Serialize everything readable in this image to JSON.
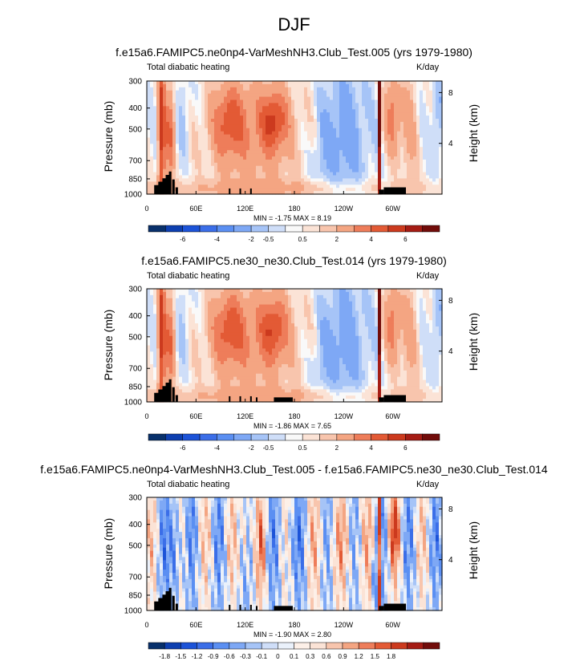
{
  "figure_title": "DJF",
  "colors": {
    "full": [
      "#08306b",
      "#0d3fb0",
      "#1c53d8",
      "#3b6ee8",
      "#5b8ff2",
      "#7ea8f5",
      "#a6c4f7",
      "#cfdef8",
      "#f9f9f9",
      "#fbe3d6",
      "#f8c5ad",
      "#f4a582",
      "#ee7d5a",
      "#e35a35",
      "#cc3a1e",
      "#a51c14",
      "#720c0a"
    ],
    "diff": [
      "#08306b",
      "#0d3fb0",
      "#1c53d8",
      "#3b6ee8",
      "#5b8ff2",
      "#7ea8f5",
      "#a6c4f7",
      "#cfdef8",
      "#eaf1fb",
      "#fdf0e8",
      "#fbe3d6",
      "#f8c5ad",
      "#f4a582",
      "#ee7d5a",
      "#e35a35",
      "#cc3a1e",
      "#a51c14",
      "#720c0a"
    ]
  },
  "chart_data": [
    {
      "type": "heatmap",
      "title": "f.e15a6.FAMIPC5.ne0np4-VarMeshNH3.Club_Test.005 (yrs 1979-1980)",
      "variable": "Total diabatic heating",
      "units": "K/day",
      "ylabel": "Pressure (mb)",
      "ylabel_right": "Height (km)",
      "xticks": [
        "0",
        "60E",
        "120E",
        "180",
        "120W",
        "60W"
      ],
      "yticks": [
        "300",
        "400",
        "500",
        "700",
        "850",
        "1000"
      ],
      "yticks_right": [
        "8",
        "4"
      ],
      "stats": "MIN = -1.75  MAX =  8.19",
      "colorbar_labels": [
        "-6",
        "-4",
        "-2",
        "-0.5",
        "0.5",
        "2",
        "4",
        "6"
      ],
      "colorbar_label_after_box": [
        2,
        4,
        6,
        7,
        9,
        11,
        13,
        15
      ],
      "xlim": [
        0,
        360
      ],
      "ylim": [
        1000,
        300
      ]
    },
    {
      "type": "heatmap",
      "title": "f.e15a6.FAMIPC5.ne30_ne30.Club_Test.014 (yrs 1979-1980)",
      "variable": "Total diabatic heating",
      "units": "K/day",
      "ylabel": "Pressure (mb)",
      "ylabel_right": "Height (km)",
      "xticks": [
        "0",
        "60E",
        "120E",
        "180",
        "120W",
        "60W"
      ],
      "yticks": [
        "300",
        "400",
        "500",
        "700",
        "850",
        "1000"
      ],
      "yticks_right": [
        "8",
        "4"
      ],
      "stats": "MIN = -1.86  MAX =  7.65",
      "colorbar_labels": [
        "-6",
        "-4",
        "-2",
        "-0.5",
        "0.5",
        "2",
        "4",
        "6"
      ],
      "colorbar_label_after_box": [
        2,
        4,
        6,
        7,
        9,
        11,
        13,
        15
      ],
      "xlim": [
        0,
        360
      ],
      "ylim": [
        1000,
        300
      ]
    },
    {
      "type": "heatmap",
      "title": "f.e15a6.FAMIPC5.ne0np4-VarMeshNH3.Club_Test.005 - f.e15a6.FAMIPC5.ne30_ne30.Club_Test.014",
      "variable": "Total diabatic heating",
      "units": "K/day",
      "ylabel": "Pressure (mb)",
      "ylabel_right": "Height (km)",
      "xticks": [
        "0",
        "60E",
        "120E",
        "180",
        "120W",
        "60W"
      ],
      "yticks": [
        "300",
        "400",
        "500",
        "700",
        "850",
        "1000"
      ],
      "yticks_right": [
        "8",
        "4"
      ],
      "stats": "MIN = -1.90  MAX =  2.80",
      "colorbar_labels": [
        "-1.8",
        "-1.5",
        "-1.2",
        "-0.9",
        "-0.6",
        "-0.3",
        "-0.1",
        "0",
        "0.1",
        "0.3",
        "0.6",
        "0.9",
        "1.2",
        "1.5",
        "1.8"
      ],
      "colorbar_label_after_box": [
        1,
        2,
        3,
        4,
        5,
        6,
        7,
        8,
        9,
        10,
        11,
        12,
        13,
        14,
        15
      ],
      "xlim": [
        0,
        360
      ],
      "ylim": [
        1000,
        300
      ]
    }
  ]
}
